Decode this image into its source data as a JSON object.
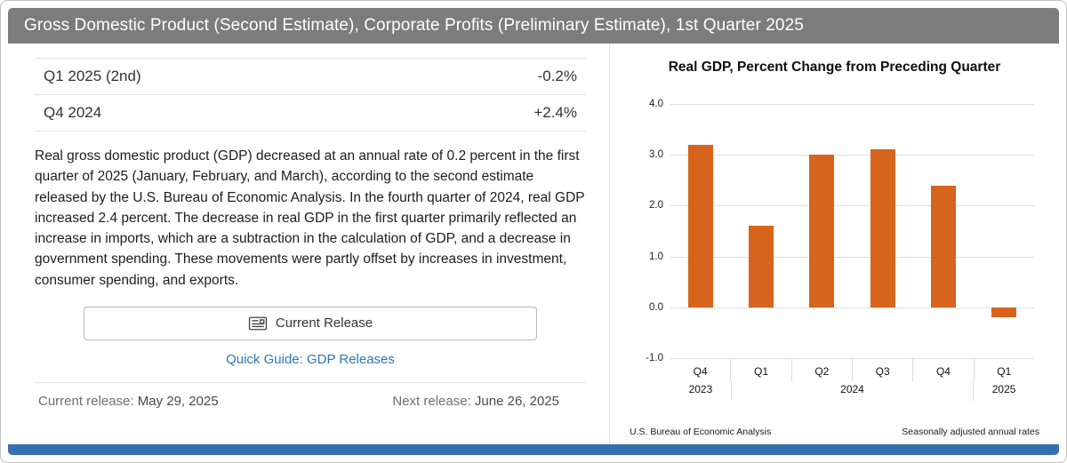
{
  "header": {
    "title": "Gross Domestic Product (Second Estimate), Corporate Profits (Preliminary Estimate), 1st Quarter 2025"
  },
  "summary_table": {
    "rows": [
      {
        "label": "Q1 2025 (2nd)",
        "value": "-0.2%"
      },
      {
        "label": "Q4 2024",
        "value": "+2.4%"
      }
    ]
  },
  "description": "Real gross domestic product (GDP) decreased at an annual rate of 0.2 percent in the first quarter of 2025 (January, February, and March), according to the second estimate released by the U.S. Bureau of Economic Analysis. In the fourth quarter of 2024, real GDP increased 2.4 percent. The decrease in real GDP in the first quarter primarily reflected an increase in imports, which are a subtraction in the calculation of GDP, and a decrease in government spending. These movements were partly offset by increases in investment, consumer spending, and exports.",
  "actions": {
    "current_release_button": "Current Release",
    "quick_guide_link": "Quick Guide: GDP Releases"
  },
  "release_info": {
    "current_label": "Current release:",
    "current_value": "May 29, 2025",
    "next_label": "Next release:",
    "next_value": "June 26, 2025"
  },
  "chart": {
    "title": "Real GDP, Percent Change from Preceding Quarter",
    "footer_left": "U.S. Bureau of Economic Analysis",
    "footer_right": "Seasonally adjusted annual rates"
  },
  "chart_data": {
    "type": "bar",
    "title": "Real GDP, Percent Change from Preceding Quarter",
    "categories": [
      "Q4",
      "Q1",
      "Q2",
      "Q3",
      "Q4",
      "Q1"
    ],
    "year_groups": [
      {
        "label": "2023",
        "span": 1
      },
      {
        "label": "2024",
        "span": 4
      },
      {
        "label": "2025",
        "span": 1
      }
    ],
    "values": [
      3.2,
      1.6,
      3.0,
      3.1,
      2.4,
      -0.2
    ],
    "ylim": [
      -1.0,
      4.0
    ],
    "yticks": [
      4.0,
      3.0,
      2.0,
      1.0,
      0.0,
      -1.0
    ],
    "grid": true,
    "bar_color": "#d6641d"
  },
  "colors": {
    "header_bg": "#7c7c7c",
    "bottom_strip": "#3470ad",
    "link_blue": "#2f77b5",
    "bar_orange": "#d6641d"
  }
}
